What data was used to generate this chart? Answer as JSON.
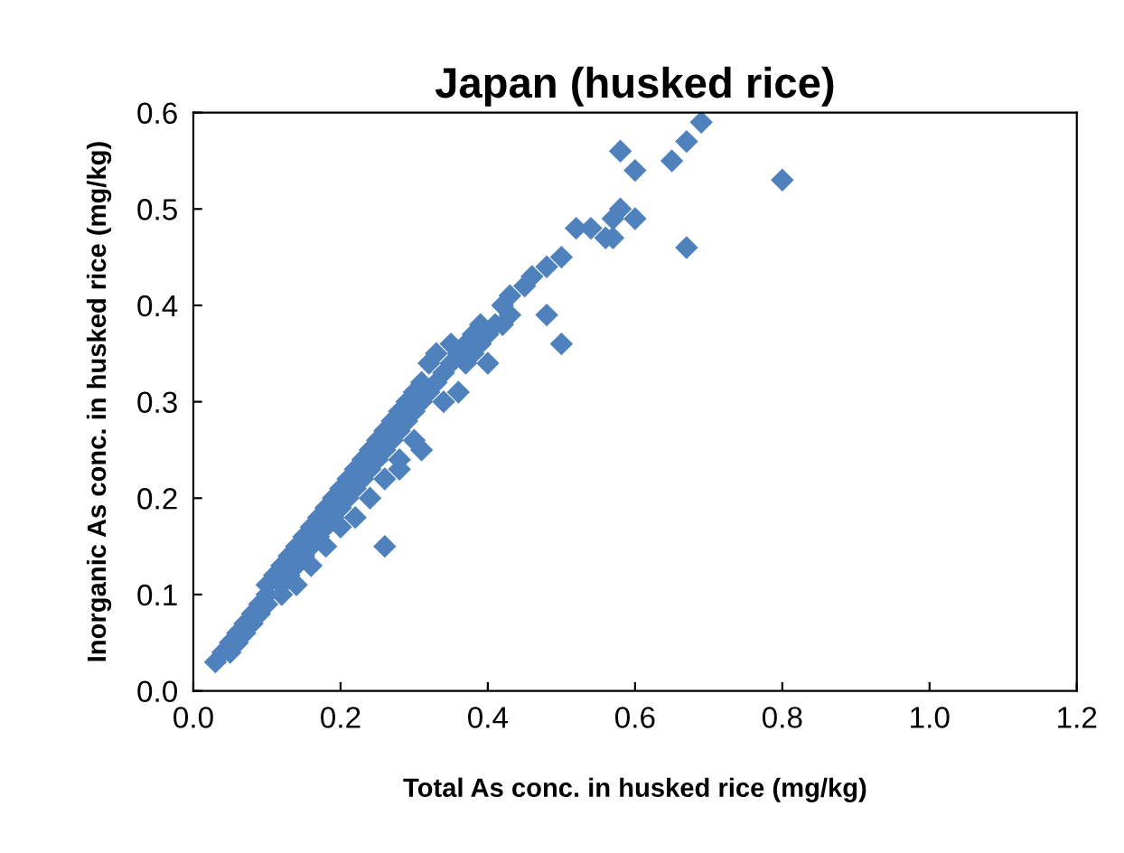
{
  "chart_data": {
    "type": "scatter",
    "title": "Japan (husked rice)",
    "xlabel": "Total As conc. in husked rice (mg/kg)",
    "ylabel": "Inorganic As conc. in husked rice (mg/kg)",
    "xlim": [
      0,
      1.2
    ],
    "ylim": [
      0,
      0.6
    ],
    "xticks": [
      {
        "value": 0,
        "label": "0.0"
      },
      0.2,
      0.4,
      0.6,
      0.8,
      {
        "value": 1,
        "label": "1.0"
      },
      1.2
    ],
    "yticks": [
      {
        "value": 0,
        "label": "0.0"
      },
      0.1,
      0.2,
      0.3,
      0.4,
      0.5,
      0.6
    ],
    "marker": "diamond",
    "grid": false,
    "legend": false,
    "series": [
      {
        "color": "#4f81bd",
        "x": [
          0.03,
          0.04,
          0.05,
          0.05,
          0.06,
          0.06,
          0.07,
          0.07,
          0.08,
          0.08,
          0.09,
          0.09,
          0.1,
          0.1,
          0.1,
          0.11,
          0.12,
          0.12,
          0.12,
          0.13,
          0.13,
          0.14,
          0.14,
          0.14,
          0.15,
          0.15,
          0.16,
          0.16,
          0.16,
          0.17,
          0.17,
          0.18,
          0.18,
          0.18,
          0.19,
          0.19,
          0.2,
          0.2,
          0.2,
          0.21,
          0.21,
          0.22,
          0.22,
          0.22,
          0.23,
          0.23,
          0.24,
          0.24,
          0.24,
          0.25,
          0.25,
          0.26,
          0.26,
          0.26,
          0.27,
          0.27,
          0.28,
          0.28,
          0.28,
          0.29,
          0.29,
          0.3,
          0.3,
          0.3,
          0.31,
          0.31,
          0.32,
          0.32,
          0.33,
          0.33,
          0.34,
          0.34,
          0.35,
          0.35,
          0.36,
          0.36,
          0.37,
          0.37,
          0.38,
          0.38,
          0.39,
          0.39,
          0.4,
          0.4,
          0.41,
          0.42,
          0.42,
          0.43,
          0.43,
          0.45,
          0.46,
          0.48,
          0.48,
          0.5,
          0.5,
          0.52,
          0.54,
          0.56,
          0.57,
          0.57,
          0.58,
          0.58,
          0.6,
          0.6,
          0.65,
          0.67,
          0.67,
          0.69,
          0.8,
          0.26,
          0.28,
          0.31
        ],
        "values": [
          0.03,
          0.04,
          0.05,
          0.04,
          0.06,
          0.05,
          0.07,
          0.06,
          0.08,
          0.07,
          0.09,
          0.08,
          0.1,
          0.09,
          0.11,
          0.12,
          0.11,
          0.13,
          0.1,
          0.12,
          0.14,
          0.13,
          0.15,
          0.11,
          0.14,
          0.16,
          0.15,
          0.17,
          0.13,
          0.16,
          0.18,
          0.17,
          0.19,
          0.15,
          0.18,
          0.2,
          0.19,
          0.21,
          0.17,
          0.2,
          0.22,
          0.21,
          0.23,
          0.18,
          0.22,
          0.24,
          0.23,
          0.25,
          0.2,
          0.24,
          0.26,
          0.25,
          0.27,
          0.22,
          0.26,
          0.28,
          0.27,
          0.29,
          0.24,
          0.28,
          0.3,
          0.29,
          0.31,
          0.26,
          0.3,
          0.32,
          0.31,
          0.34,
          0.32,
          0.35,
          0.33,
          0.3,
          0.34,
          0.36,
          0.35,
          0.31,
          0.36,
          0.34,
          0.37,
          0.35,
          0.36,
          0.38,
          0.37,
          0.34,
          0.38,
          0.4,
          0.38,
          0.41,
          0.39,
          0.42,
          0.43,
          0.44,
          0.39,
          0.45,
          0.36,
          0.48,
          0.48,
          0.47,
          0.49,
          0.47,
          0.56,
          0.5,
          0.54,
          0.49,
          0.55,
          0.57,
          0.46,
          0.59,
          0.53,
          0.15,
          0.23,
          0.25
        ]
      }
    ]
  }
}
